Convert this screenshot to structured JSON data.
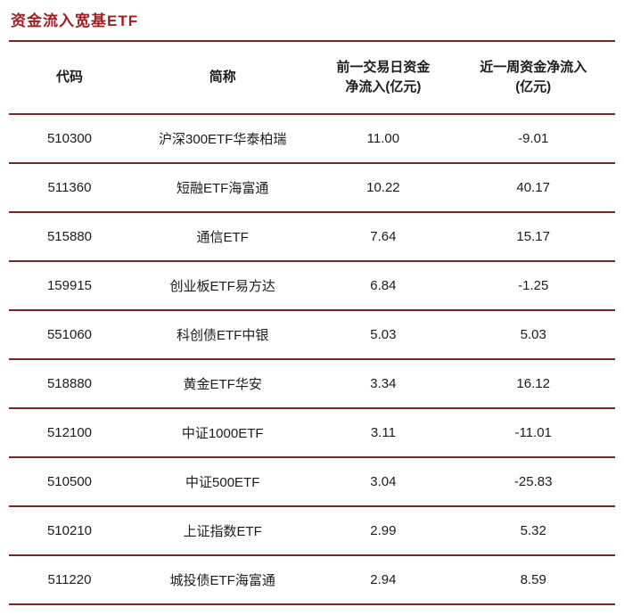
{
  "title": "资金流入宽基ETF",
  "colors": {
    "title": "#9e1f1f",
    "rule": "#6e2b2b",
    "text": "#1c1c1c"
  },
  "table": {
    "headers": [
      "代码",
      "简称",
      "前一交易日资金\n净流入(亿元)",
      "近一周资金净流入\n(亿元)"
    ],
    "rows": [
      {
        "code": "510300",
        "name": "沪深300ETF华泰柏瑞",
        "prev_day": "11.00",
        "week": "-9.01"
      },
      {
        "code": "511360",
        "name": "短融ETF海富通",
        "prev_day": "10.22",
        "week": "40.17"
      },
      {
        "code": "515880",
        "name": "通信ETF",
        "prev_day": "7.64",
        "week": "15.17"
      },
      {
        "code": "159915",
        "name": "创业板ETF易方达",
        "prev_day": "6.84",
        "week": "-1.25"
      },
      {
        "code": "551060",
        "name": "科创债ETF中银",
        "prev_day": "5.03",
        "week": "5.03"
      },
      {
        "code": "518880",
        "name": "黄金ETF华安",
        "prev_day": "3.34",
        "week": "16.12"
      },
      {
        "code": "512100",
        "name": "中证1000ETF",
        "prev_day": "3.11",
        "week": "-11.01"
      },
      {
        "code": "510500",
        "name": "中证500ETF",
        "prev_day": "3.04",
        "week": "-25.83"
      },
      {
        "code": "510210",
        "name": "上证指数ETF",
        "prev_day": "2.99",
        "week": "5.32"
      },
      {
        "code": "511220",
        "name": "城投债ETF海富通",
        "prev_day": "2.94",
        "week": "8.59"
      }
    ]
  },
  "chart_data": {
    "type": "table",
    "title": "资金流入宽基ETF",
    "columns": [
      "代码",
      "简称",
      "前一交易日资金净流入(亿元)",
      "近一周资金净流入(亿元)"
    ],
    "rows": [
      [
        "510300",
        "沪深300ETF华泰柏瑞",
        11.0,
        -9.01
      ],
      [
        "511360",
        "短融ETF海富通",
        10.22,
        40.17
      ],
      [
        "515880",
        "通信ETF",
        7.64,
        15.17
      ],
      [
        "159915",
        "创业板ETF易方达",
        6.84,
        -1.25
      ],
      [
        "551060",
        "科创债ETF中银",
        5.03,
        5.03
      ],
      [
        "518880",
        "黄金ETF华安",
        3.34,
        16.12
      ],
      [
        "512100",
        "中证1000ETF",
        3.11,
        -11.01
      ],
      [
        "510500",
        "中证500ETF",
        3.04,
        -25.83
      ],
      [
        "510210",
        "上证指数ETF",
        2.99,
        5.32
      ],
      [
        "511220",
        "城投债ETF海富通",
        2.94,
        8.59
      ]
    ]
  }
}
